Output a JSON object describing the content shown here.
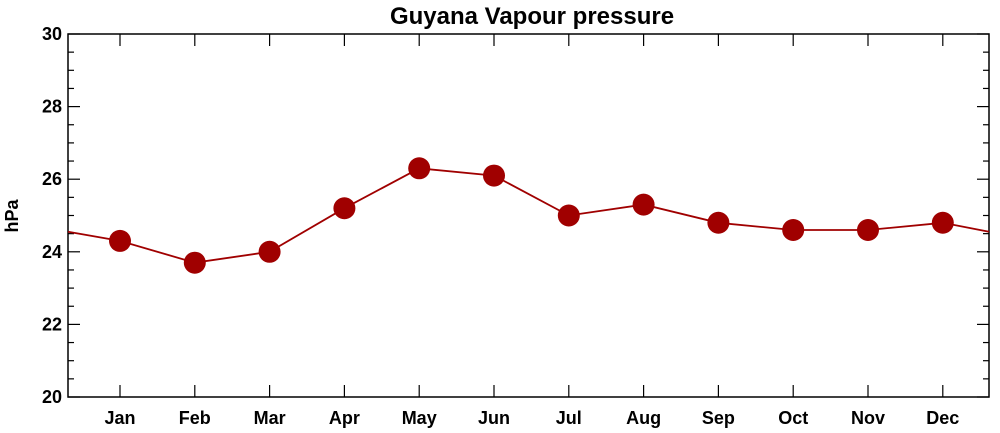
{
  "chart_data": {
    "type": "line",
    "title": "Guyana Vapour pressure",
    "xlabel": "",
    "ylabel": "hPa",
    "categories": [
      "Jan",
      "Feb",
      "Mar",
      "Apr",
      "May",
      "Jun",
      "Jul",
      "Aug",
      "Sep",
      "Oct",
      "Nov",
      "Dec"
    ],
    "series": [
      {
        "values": [
          24.3,
          23.7,
          24.0,
          25.2,
          26.3,
          26.1,
          25.0,
          25.3,
          24.8,
          24.6,
          24.6,
          24.8
        ]
      }
    ],
    "ylim": [
      20,
      30
    ],
    "yticks": [
      "20",
      "22",
      "24",
      "26",
      "28",
      "30"
    ],
    "grid": false,
    "legend": "none",
    "colors": {
      "line": "#a00000",
      "marker": "#a00000"
    }
  }
}
